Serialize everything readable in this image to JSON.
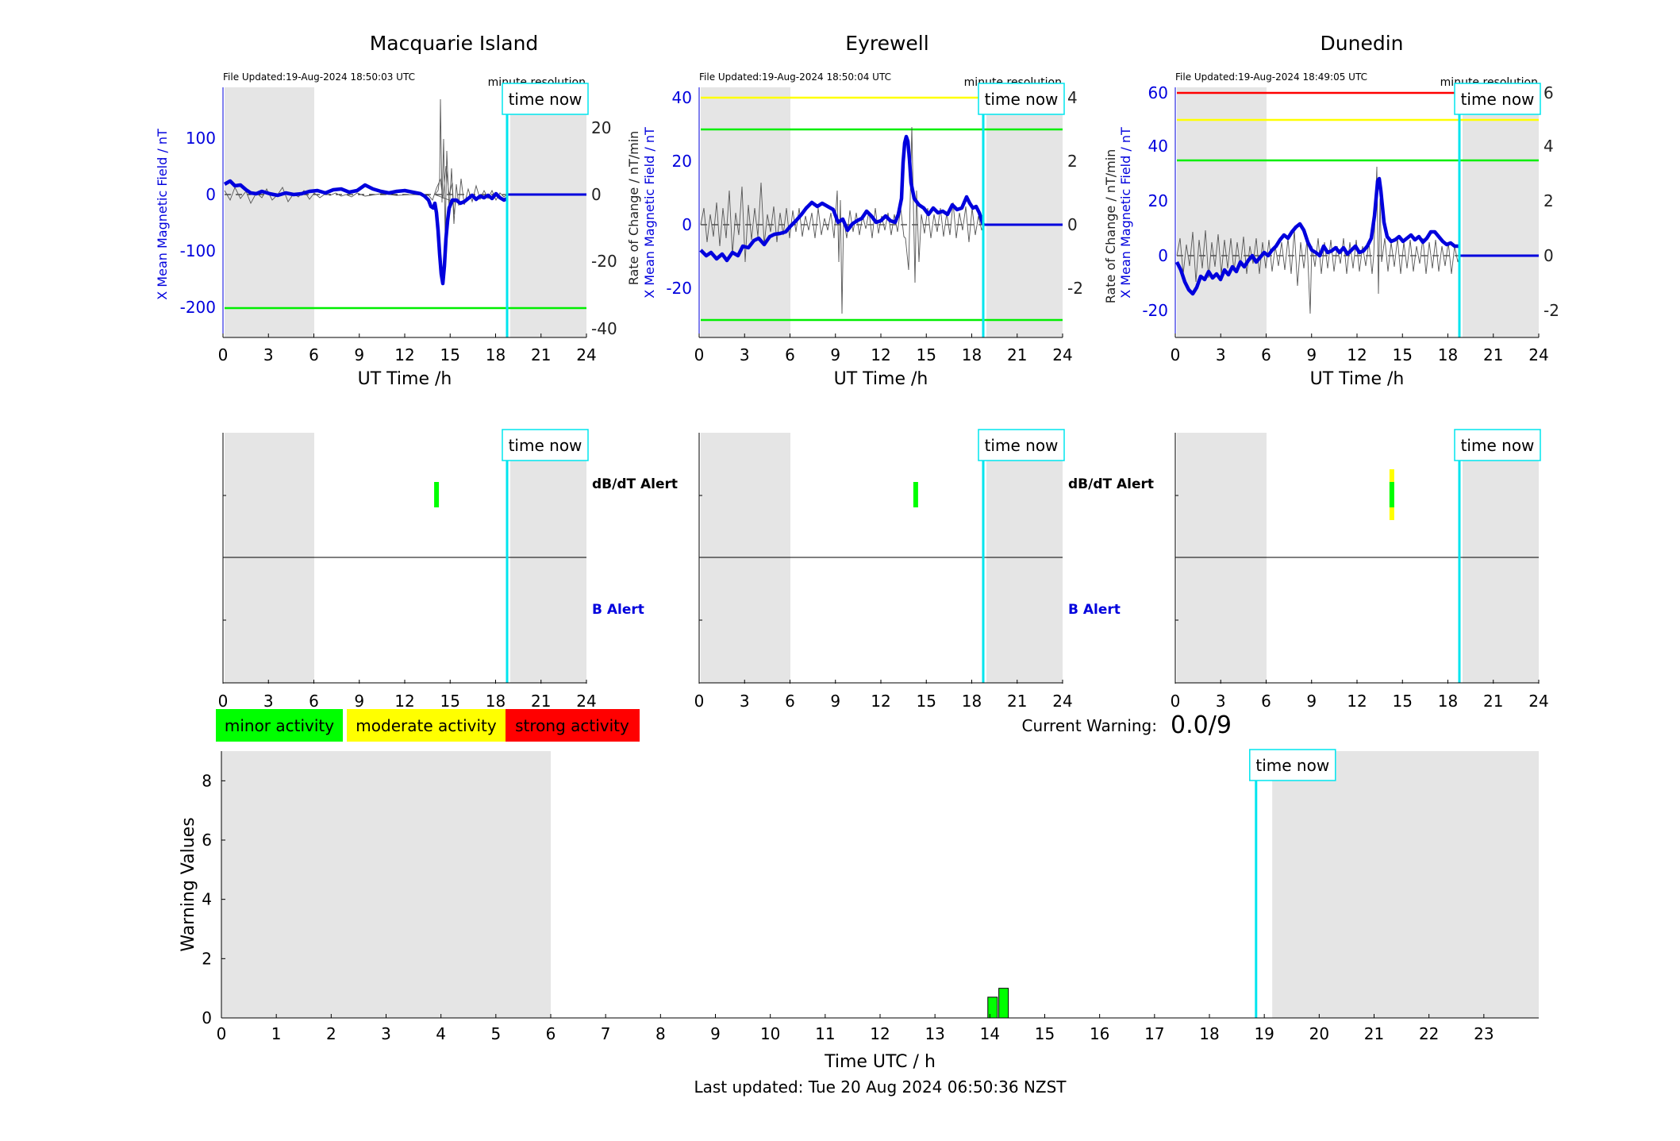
{
  "colors": {
    "x_field": "#0000dd",
    "rate": "#555555",
    "night_shade": "#e5e5e5",
    "time_now": "#00e5ee",
    "minor": "#00ff00",
    "moderate": "#ffff00",
    "strong": "#ff0000"
  },
  "common": {
    "ut_xlabel": "UT Time /h",
    "ut_ticks": [
      "0",
      "3",
      "6",
      "9",
      "12",
      "15",
      "18",
      "21",
      "24"
    ],
    "time_now_label": "time now",
    "minute_resolution": "minute resolution",
    "ylabel_left": "X Mean Magnetic Field / nT",
    "ylabel_right": "Rate of Change / nT/min",
    "dbdt_alert": "dB/dT Alert",
    "b_alert": "B Alert",
    "time_now_hour": 18.85
  },
  "stations": [
    {
      "name": "Macquarie Island",
      "file_updated": "File Updated:19-Aug-2024 18:50:03 UTC",
      "left_ticks": [
        "-200",
        "-100",
        "0",
        "100"
      ],
      "right_ticks": [
        "-40",
        "-20",
        "0",
        "20"
      ],
      "dbdt_alert": {
        "hour": 14.1,
        "levels": [
          "minor"
        ]
      }
    },
    {
      "name": "Eyrewell",
      "file_updated": "File Updated:19-Aug-2024 18:50:04 UTC",
      "left_ticks": [
        "-20",
        "0",
        "20",
        "40"
      ],
      "right_ticks": [
        "-2",
        "0",
        "2",
        "4"
      ],
      "dbdt_alert": {
        "hour": 14.3,
        "levels": [
          "minor"
        ]
      }
    },
    {
      "name": "Dunedin",
      "file_updated": "File Updated:19-Aug-2024 18:49:05 UTC",
      "left_ticks": [
        "-20",
        "0",
        "20",
        "40",
        "60"
      ],
      "right_ticks": [
        "-2",
        "0",
        "2",
        "4",
        "6"
      ],
      "dbdt_alert": {
        "hour": 14.3,
        "levels": [
          "moderate",
          "minor"
        ]
      }
    }
  ],
  "legend": {
    "minor": "minor activity",
    "moderate": "moderate activity",
    "strong": "strong activity"
  },
  "current_warning": {
    "label": "Current Warning:",
    "value": "0.0/9"
  },
  "chart_data": {
    "type": "bar",
    "title": "",
    "xlabel": "Time UTC / h",
    "ylabel": "Warning Values",
    "xlim": [
      0,
      24
    ],
    "ylim": [
      0,
      9
    ],
    "x_ticks": [
      "0",
      "1",
      "2",
      "3",
      "4",
      "5",
      "6",
      "7",
      "8",
      "9",
      "10",
      "11",
      "12",
      "13",
      "14",
      "15",
      "16",
      "17",
      "18",
      "19",
      "20",
      "21",
      "22",
      "23"
    ],
    "y_ticks": [
      "0",
      "2",
      "4",
      "6",
      "8"
    ],
    "x": [
      14.05,
      14.25
    ],
    "values": [
      0.7,
      1.0
    ],
    "night_shade_hours": [
      [
        0,
        6
      ],
      [
        19,
        24
      ]
    ],
    "time_now_hour": 18.85,
    "grid": false
  },
  "footer": "Last updated: Tue 20 Aug 2024 06:50:36 NZST"
}
